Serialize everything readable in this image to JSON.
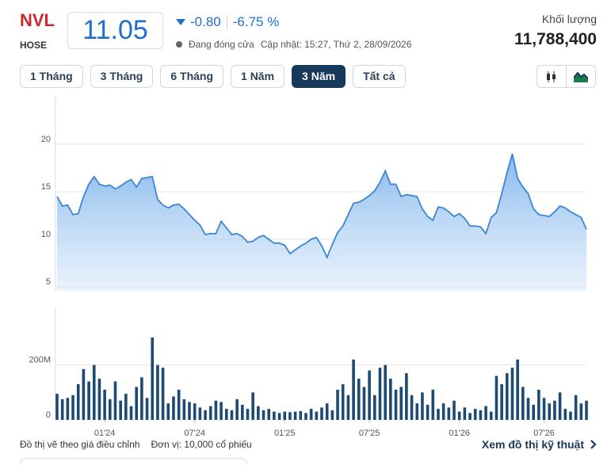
{
  "header": {
    "symbol": "NVL",
    "exchange": "HOSE",
    "price": "11.05",
    "change": "-0.80",
    "change_pct": "-6.75 %",
    "status": "Đang đóng cửa",
    "updated": "Cập nhật: 15:27, Thứ 2, 28/09/2026",
    "volume_label": "Khối lượng",
    "volume": "11,788,400"
  },
  "ranges": {
    "labels": [
      "1 Tháng",
      "3 Tháng",
      "6 Tháng",
      "1 Năm",
      "3 Năm",
      "Tất cả"
    ],
    "active": 4
  },
  "chart_data": [
    {
      "type": "area",
      "xlim": [
        0,
        100
      ],
      "ylim": [
        4.6,
        25
      ],
      "yticks": [
        5,
        10,
        15,
        20
      ],
      "grid": true,
      "series": [
        {
          "color": "#3a86d4",
          "values": [
            14.5,
            13.5,
            13.6,
            12.6,
            12.7,
            14.5,
            15.8,
            16.6,
            15.8,
            15.6,
            15.7,
            15.3,
            15.6,
            16,
            16.3,
            15.5,
            16.4,
            16.5,
            16.6,
            14.2,
            13.6,
            13.3,
            13.6,
            13.7,
            13.2,
            12.6,
            12,
            11.5,
            10.5,
            10.6,
            10.6,
            11.9,
            11.2,
            10.5,
            10.6,
            10.3,
            9.7,
            9.8,
            10.2,
            10.4,
            10,
            9.6,
            9.6,
            9.4,
            8.5,
            8.9,
            9.3,
            9.6,
            10,
            10.2,
            9.3,
            8.1,
            9.5,
            10.7,
            11.4,
            12.6,
            13.8,
            13.9,
            14.2,
            14.6,
            15.1,
            16,
            17.2,
            15.8,
            15.8,
            14.5,
            14.7,
            14.6,
            14.5,
            13.2,
            12.4,
            12,
            13.4,
            13.3,
            12.9,
            12.4,
            12.7,
            12.2,
            11.4,
            11.4,
            11.3,
            10.6,
            12.3,
            12.8,
            14.8,
            17,
            19,
            16.4,
            15.5,
            14.8,
            13.2,
            12.6,
            12.5,
            12.4,
            12.9,
            13.5,
            13.3,
            12.9,
            12.6,
            12.3,
            11.05
          ]
        }
      ]
    },
    {
      "type": "bar",
      "xlim": [
        0,
        100
      ],
      "ylim": [
        0,
        410000000
      ],
      "yticks": [
        0,
        {
          "value": 200000000,
          "label": "200M"
        }
      ],
      "grid": true,
      "xticks": [
        {
          "value": 9,
          "label": "01'24"
        },
        {
          "value": 26,
          "label": "07'24"
        },
        {
          "value": 43,
          "label": "01'25"
        },
        {
          "value": 59,
          "label": "07'25"
        },
        {
          "value": 76,
          "label": "01'26"
        },
        {
          "value": 92,
          "label": "07'26"
        }
      ],
      "series": [
        {
          "color": "#1d4a73",
          "values": [
            95000000,
            75000000,
            80000000,
            90000000,
            130000000,
            185000000,
            140000000,
            200000000,
            150000000,
            110000000,
            75000000,
            140000000,
            70000000,
            95000000,
            50000000,
            120000000,
            155000000,
            80000000,
            300000000,
            200000000,
            190000000,
            60000000,
            85000000,
            110000000,
            75000000,
            65000000,
            60000000,
            45000000,
            35000000,
            50000000,
            70000000,
            65000000,
            40000000,
            35000000,
            75000000,
            55000000,
            40000000,
            100000000,
            50000000,
            35000000,
            40000000,
            30000000,
            25000000,
            30000000,
            28000000,
            30000000,
            32000000,
            25000000,
            40000000,
            30000000,
            45000000,
            60000000,
            35000000,
            110000000,
            130000000,
            90000000,
            220000000,
            150000000,
            120000000,
            180000000,
            90000000,
            190000000,
            200000000,
            150000000,
            110000000,
            120000000,
            170000000,
            90000000,
            60000000,
            100000000,
            55000000,
            110000000,
            40000000,
            60000000,
            45000000,
            70000000,
            30000000,
            45000000,
            25000000,
            40000000,
            35000000,
            50000000,
            30000000,
            160000000,
            130000000,
            170000000,
            190000000,
            220000000,
            120000000,
            80000000,
            55000000,
            110000000,
            80000000,
            60000000,
            70000000,
            100000000,
            40000000,
            30000000,
            90000000,
            60000000,
            70000000
          ]
        }
      ]
    }
  ],
  "footer": {
    "note": "Đồ thị vẽ theo giá điều chỉnh",
    "unit": "Đơn vị: 10,000 cổ phiếu",
    "link": "Xem đồ thị kỹ thuật"
  }
}
